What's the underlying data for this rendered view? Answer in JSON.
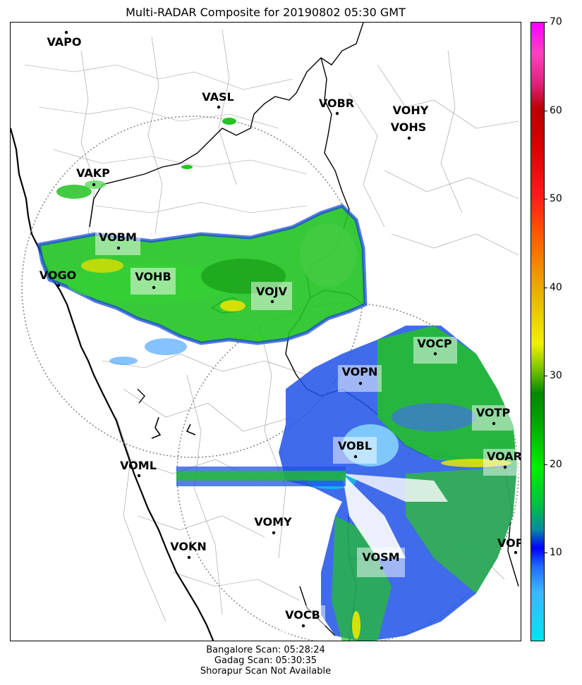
{
  "title": "Multi-RADAR Composite for 20190802 05:30 GMT",
  "colorbar": {
    "min": 0,
    "max": 70,
    "ticks": [
      10,
      20,
      30,
      40,
      50,
      60,
      70
    ],
    "tick_labels": [
      "10",
      "20",
      "30",
      "40",
      "50",
      "60",
      "70"
    ]
  },
  "stations": [
    {
      "code": "VAPO",
      "boxed": false
    },
    {
      "code": "VASL",
      "boxed": false
    },
    {
      "code": "VOBR",
      "boxed": false
    },
    {
      "code": "VOHY",
      "boxed": false
    },
    {
      "code": "VOHS",
      "boxed": false
    },
    {
      "code": "VAKP",
      "boxed": false
    },
    {
      "code": "VOBM",
      "boxed": true
    },
    {
      "code": "VOGO",
      "boxed": false
    },
    {
      "code": "VOHB",
      "boxed": true
    },
    {
      "code": "VOJV",
      "boxed": true
    },
    {
      "code": "VOCP",
      "boxed": true
    },
    {
      "code": "VOPN",
      "boxed": true
    },
    {
      "code": "VOTP",
      "boxed": true
    },
    {
      "code": "VOBL",
      "boxed": true
    },
    {
      "code": "VOAR",
      "boxed": true
    },
    {
      "code": "VOML",
      "boxed": false
    },
    {
      "code": "VOMY",
      "boxed": false
    },
    {
      "code": "VOKN",
      "boxed": false
    },
    {
      "code": "VOSM",
      "boxed": true
    },
    {
      "code": "VOPC",
      "boxed": false
    },
    {
      "code": "VOCB",
      "boxed": true
    }
  ],
  "footer": {
    "line1": "Bangalore Scan: 05:28:24",
    "line2": "Gadag Scan: 05:30:35",
    "line3": "Shorapur Scan Not Available"
  }
}
